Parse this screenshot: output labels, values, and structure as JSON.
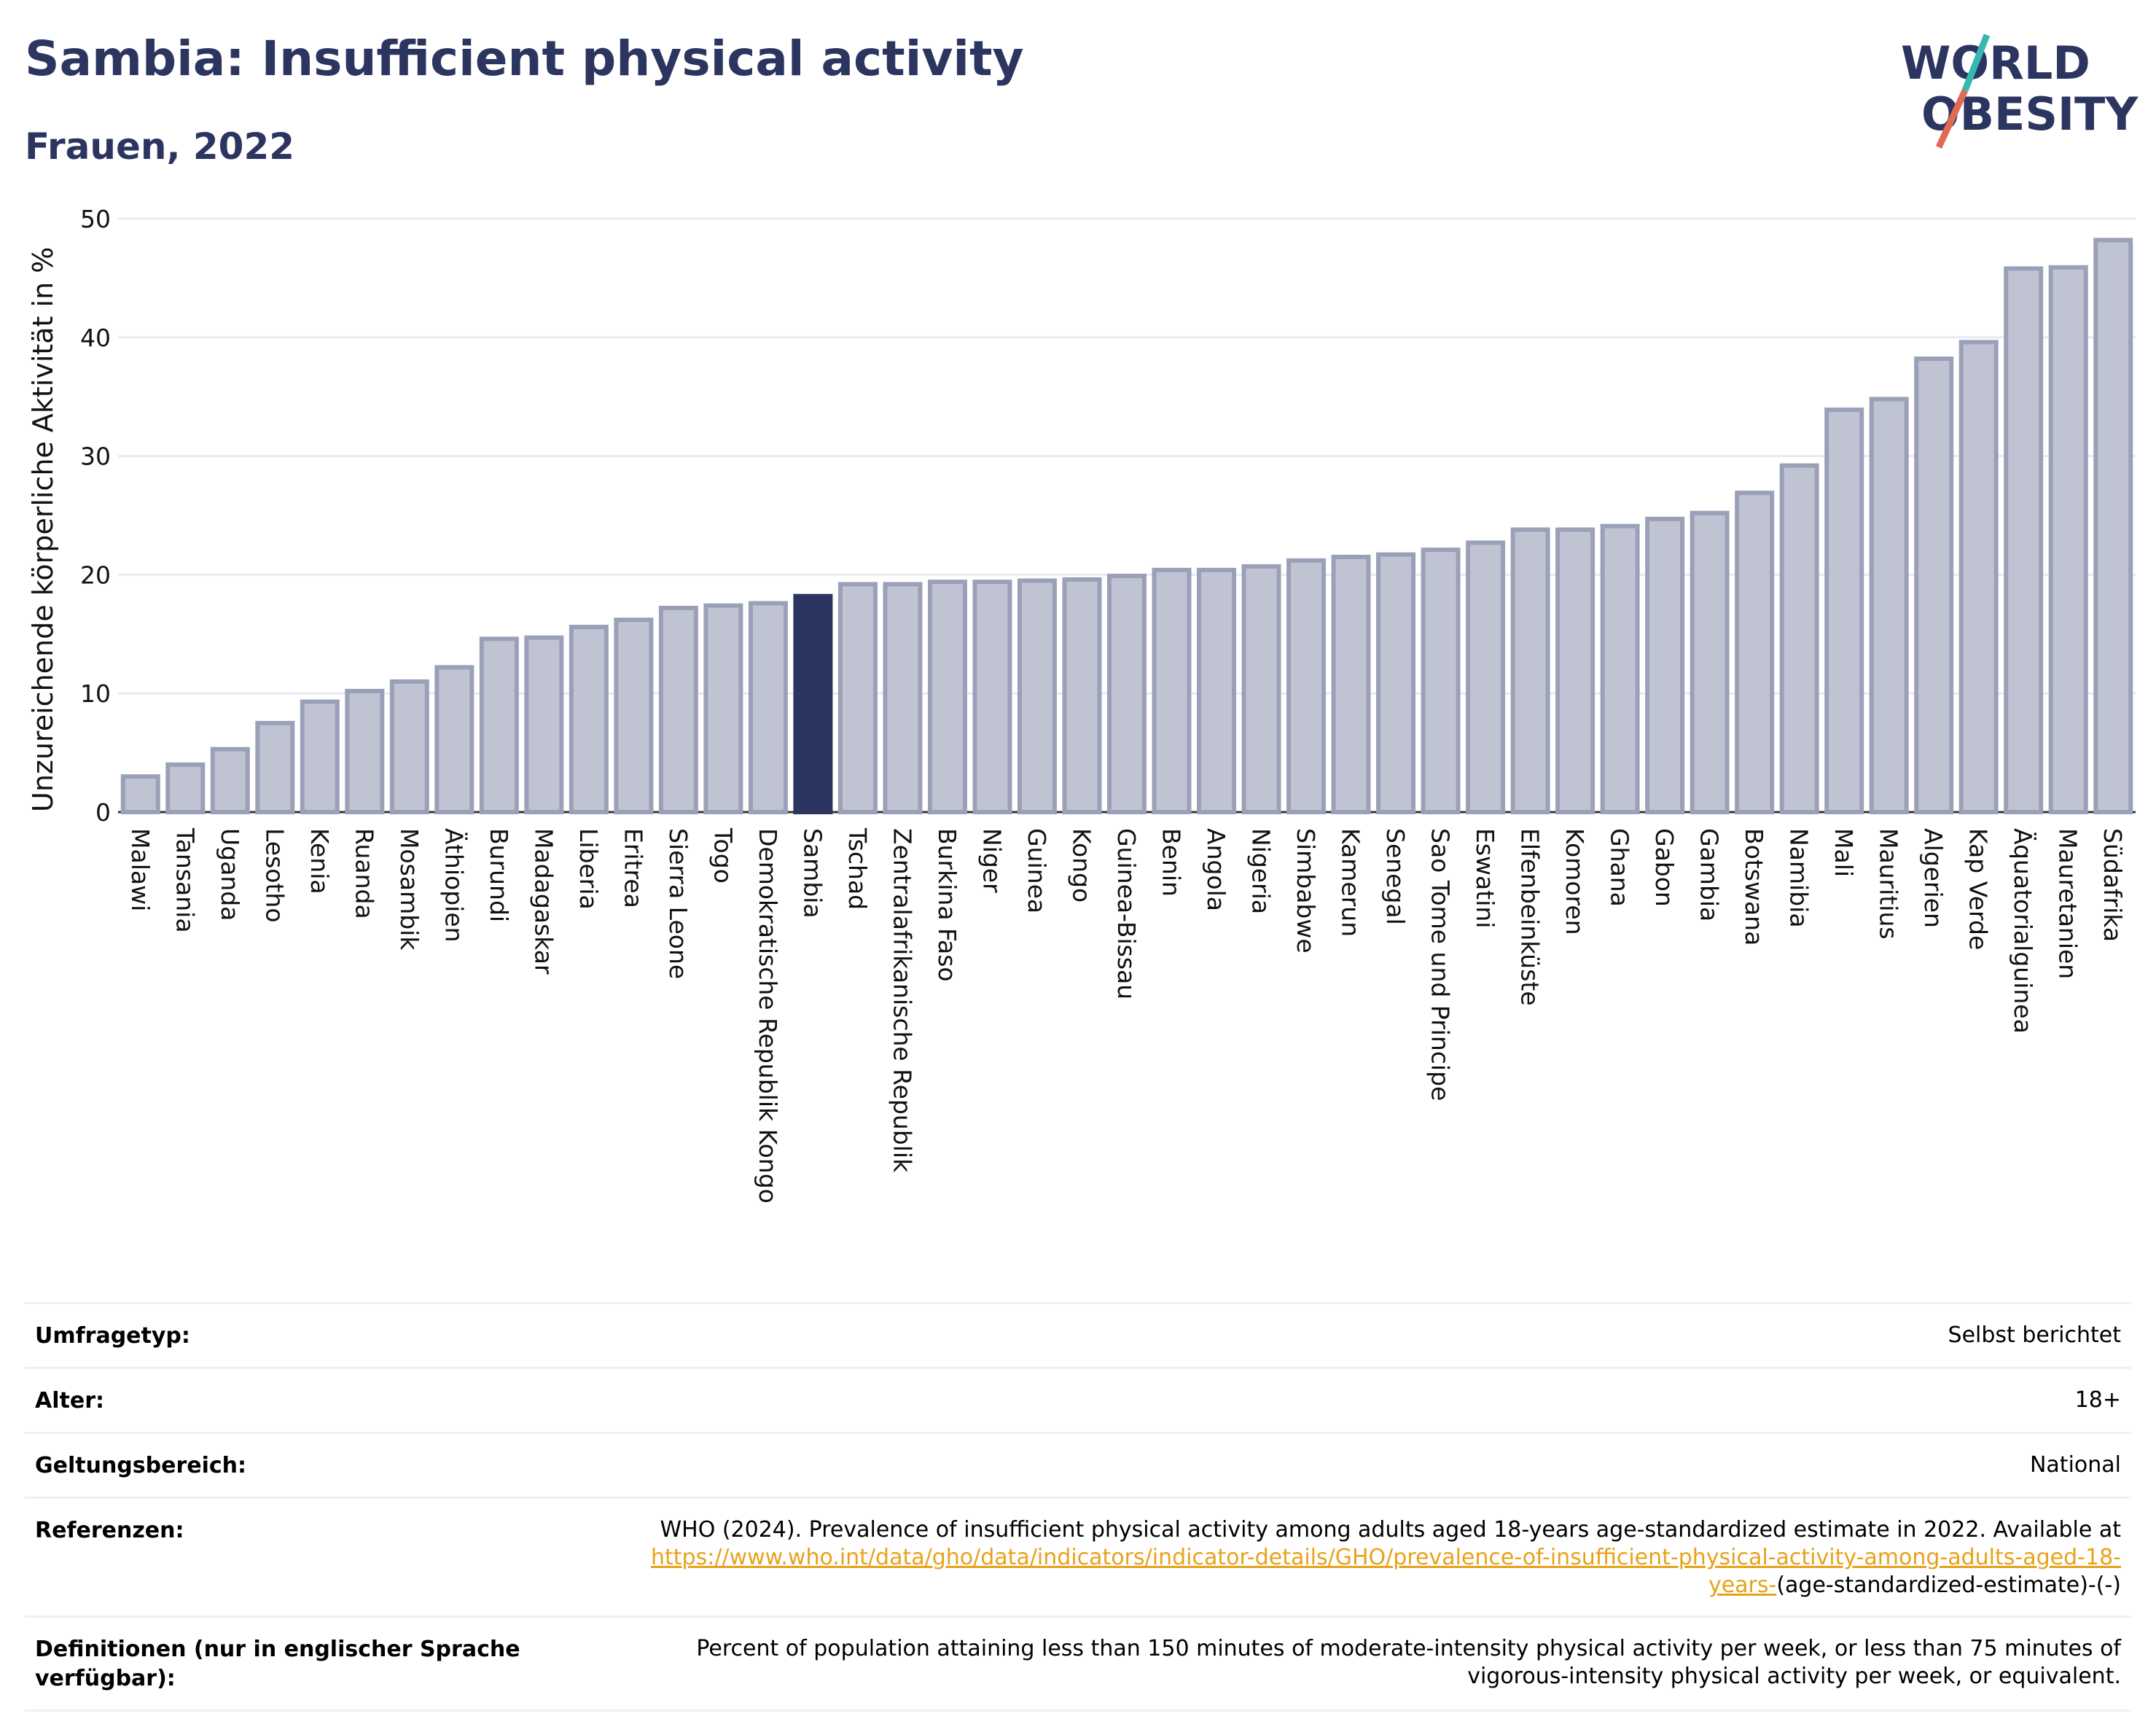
{
  "header": {
    "title": "Sambia: Insufficient physical activity",
    "subtitle": "Frauen, 2022"
  },
  "logo": {
    "line1": "WORLD",
    "line2": "OBESITY",
    "colors": [
      "#2c3560",
      "#38b6b0",
      "#e26a55"
    ]
  },
  "chart_data": {
    "type": "bar",
    "ylabel": "Unzureichende körperliche Aktivität in %",
    "ylim": [
      0,
      50
    ],
    "yticks": [
      "0",
      "10",
      "20",
      "30",
      "40",
      "50"
    ],
    "highlight": "Sambia",
    "colors": {
      "bar": "#c0c4d2",
      "bar_edge": "#9aa0b8",
      "highlight": "#2c3560"
    },
    "categories": [
      "Malawi",
      "Tansania",
      "Uganda",
      "Lesotho",
      "Kenia",
      "Ruanda",
      "Mosambik",
      "Äthiopien",
      "Burundi",
      "Madagaskar",
      "Liberia",
      "Eritrea",
      "Sierra Leone",
      "Togo",
      "Demokratische Republik Kongo",
      "Sambia",
      "Tschad",
      "Zentralafrikanische Republik",
      "Burkina Faso",
      "Niger",
      "Guinea",
      "Kongo",
      "Guinea-Bissau",
      "Benin",
      "Angola",
      "Nigeria",
      "Simbabwe",
      "Kamerun",
      "Senegal",
      "Sao Tome und Principe",
      "Eswatini",
      "Elfenbeinküste",
      "Komoren",
      "Ghana",
      "Gabon",
      "Gambia",
      "Botswana",
      "Namibia",
      "Mali",
      "Mauritius",
      "Algerien",
      "Kap Verde",
      "Äquatorialguinea",
      "Mauretanien",
      "Südafrika"
    ],
    "values": [
      3.0,
      4.0,
      5.3,
      7.5,
      9.3,
      10.2,
      11.0,
      12.2,
      14.6,
      14.7,
      15.6,
      16.2,
      17.2,
      17.4,
      17.6,
      18.2,
      19.2,
      19.2,
      19.4,
      19.4,
      19.5,
      19.6,
      19.9,
      20.4,
      20.4,
      20.7,
      21.2,
      21.5,
      21.7,
      22.1,
      22.7,
      23.8,
      23.8,
      24.1,
      24.7,
      25.2,
      26.9,
      29.2,
      33.9,
      34.8,
      38.2,
      39.6,
      45.8,
      45.9,
      48.2
    ]
  },
  "meta": [
    {
      "key": "Umfragetyp:",
      "value": "Selbst berichtet"
    },
    {
      "key": "Alter:",
      "value": "18+"
    },
    {
      "key": "Geltungsbereich:",
      "value": "National"
    },
    {
      "key": "Referenzen:",
      "value_prefix": "WHO (2024). Prevalence of insufficient physical activity among adults aged 18-years age-standardized estimate in 2022. Available at",
      "link": "https://www.who.int/data/gho/data/indicators/indicator-details/GHO/prevalence-of-insufficient-physical-activity-among-adults-aged-18-years-",
      "value_suffix": "(age-standardized-estimate)-(-)"
    },
    {
      "key": "Definitionen (nur in englischer Sprache verfügbar):",
      "value": "Percent of population attaining less than 150 minutes of moderate-intensity physical activity per week, or less than 75 minutes of vigorous-intensity physical activity per week, or equivalent."
    }
  ]
}
